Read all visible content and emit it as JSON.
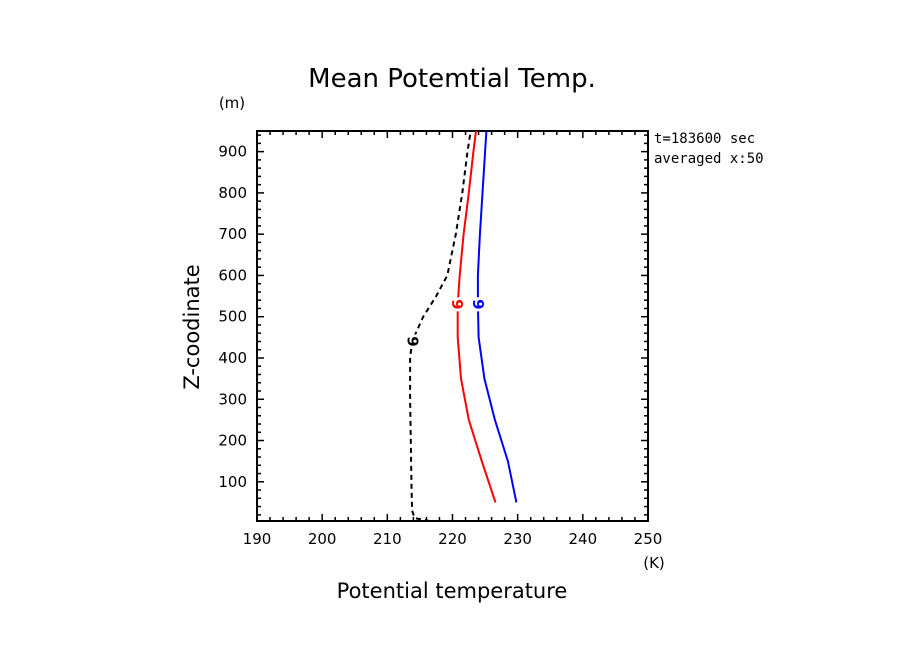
{
  "chart_data": {
    "type": "line",
    "title": "Mean Potemtial Temp.",
    "xlabel": "Potential temperature",
    "ylabel": "Z-coodinate",
    "x_unit": "(K)",
    "y_unit": "(m)",
    "xlim": [
      190,
      250
    ],
    "ylim": [
      5,
      950
    ],
    "xticks": [
      190,
      200,
      210,
      220,
      230,
      240,
      250
    ],
    "yticks": [
      100,
      200,
      300,
      400,
      500,
      600,
      700,
      800,
      900
    ],
    "annotations": [
      "t=183600 sec",
      "averaged  x:50"
    ],
    "series": [
      {
        "color": "#000000",
        "dash": "dashed",
        "label": "9",
        "label_at": [
          213.9,
          440
        ],
        "points": [
          [
            216.5,
            5
          ],
          [
            214.2,
            12
          ],
          [
            213.8,
            30
          ],
          [
            213.7,
            100
          ],
          [
            213.6,
            200
          ],
          [
            213.5,
            300
          ],
          [
            213.5,
            400
          ],
          [
            213.8,
            440
          ],
          [
            215.5,
            500
          ],
          [
            217.5,
            550
          ],
          [
            219.2,
            600
          ],
          [
            220.5,
            700
          ],
          [
            221.5,
            800
          ],
          [
            222.3,
            900
          ],
          [
            222.8,
            950
          ]
        ]
      },
      {
        "color": "#ff0000",
        "dash": "solid",
        "label": "9",
        "label_at": [
          220.7,
          530
        ],
        "points": [
          [
            226.6,
            50
          ],
          [
            224.5,
            150
          ],
          [
            222.5,
            250
          ],
          [
            221.3,
            350
          ],
          [
            220.8,
            450
          ],
          [
            220.8,
            530
          ],
          [
            221.1,
            600
          ],
          [
            221.7,
            700
          ],
          [
            222.5,
            800
          ],
          [
            223.2,
            900
          ],
          [
            223.6,
            950
          ]
        ]
      },
      {
        "color": "#0000ff",
        "dash": "solid",
        "label": "9",
        "label_at": [
          223.9,
          530
        ],
        "points": [
          [
            229.8,
            50
          ],
          [
            228.5,
            150
          ],
          [
            226.5,
            250
          ],
          [
            224.9,
            350
          ],
          [
            224.0,
            450
          ],
          [
            223.9,
            530
          ],
          [
            223.9,
            600
          ],
          [
            224.2,
            700
          ],
          [
            224.6,
            800
          ],
          [
            225.0,
            900
          ],
          [
            225.2,
            950
          ]
        ]
      }
    ]
  }
}
